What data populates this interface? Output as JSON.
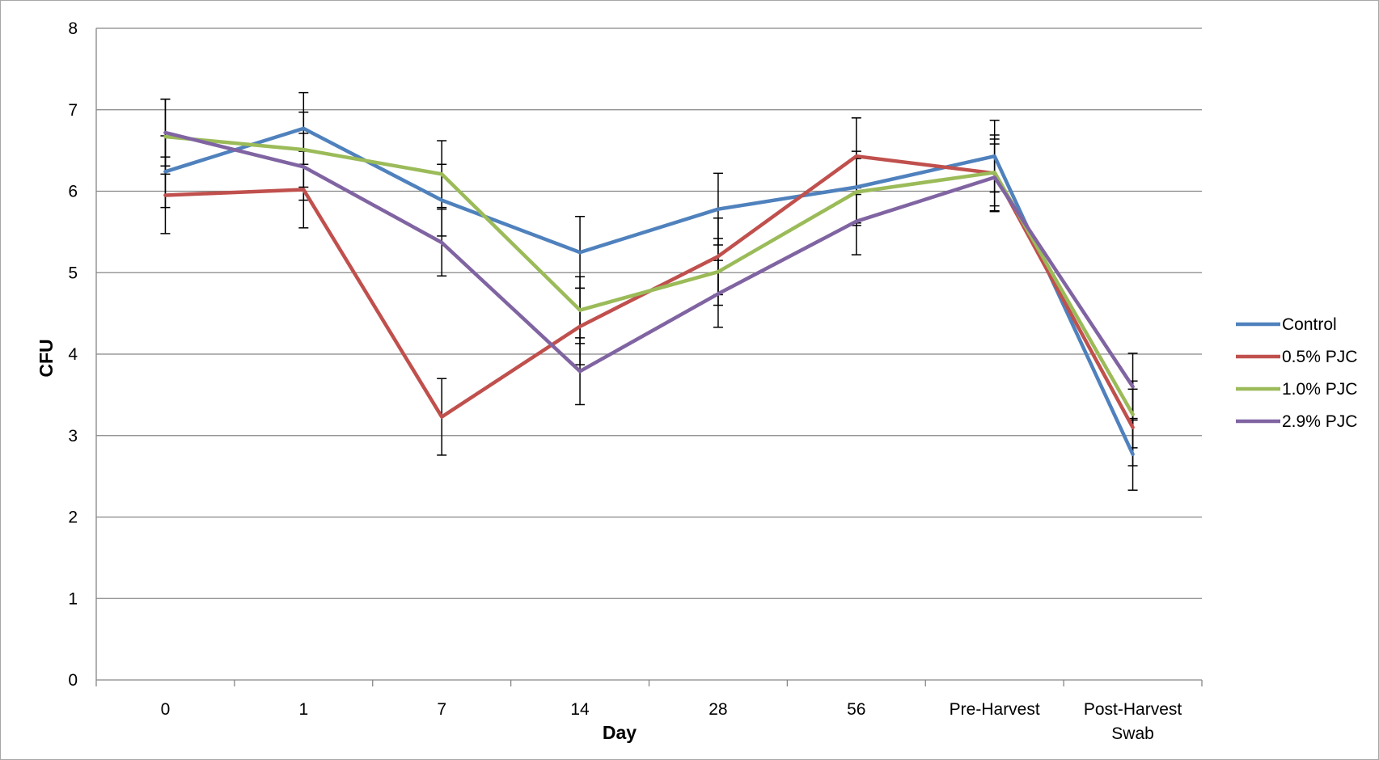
{
  "chart_data": {
    "type": "line",
    "title": "",
    "xlabel": "Day",
    "ylabel": "CFU",
    "ylim": [
      0,
      8
    ],
    "yticks": [
      0,
      1,
      2,
      3,
      4,
      5,
      6,
      7,
      8
    ],
    "grid": true,
    "legend_position": "right",
    "categories": [
      [
        "0"
      ],
      [
        "1"
      ],
      [
        "7"
      ],
      [
        "14"
      ],
      [
        "28"
      ],
      [
        "56"
      ],
      [
        "Pre-Harvest"
      ],
      [
        "Post-Harvest",
        "Swab"
      ]
    ],
    "series": [
      {
        "name": "Control",
        "color": "#4f81bd",
        "values": [
          6.24,
          6.77,
          5.89,
          5.25,
          5.78,
          6.05,
          6.43,
          2.77
        ],
        "errors": [
          0.44,
          0.44,
          0.44,
          0.44,
          0.44,
          0.44,
          0.44,
          0.44
        ]
      },
      {
        "name": "0.5% PJC",
        "color": "#c0504d",
        "values": [
          5.95,
          6.02,
          3.23,
          4.34,
          5.2,
          6.43,
          6.22,
          3.1
        ],
        "errors": [
          0.47,
          0.47,
          0.47,
          0.47,
          0.47,
          0.47,
          0.47,
          0.47
        ]
      },
      {
        "name": "1.0% PJC",
        "color": "#9bbb59",
        "values": [
          6.67,
          6.51,
          6.21,
          4.54,
          5.01,
          5.99,
          6.23,
          3.26
        ],
        "errors": [
          0.46,
          0.46,
          0.41,
          0.41,
          0.41,
          0.41,
          0.41,
          0.41
        ]
      },
      {
        "name": "2.9% PJC",
        "color": "#8064a2",
        "values": [
          6.72,
          6.3,
          5.37,
          3.79,
          4.74,
          5.63,
          6.17,
          3.6
        ],
        "errors": [
          0.41,
          0.41,
          0.41,
          0.41,
          0.41,
          0.41,
          0.41,
          0.41
        ]
      }
    ]
  }
}
